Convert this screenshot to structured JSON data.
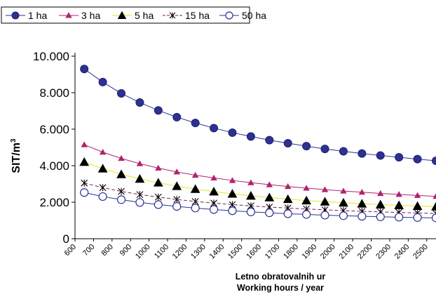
{
  "chart_data": {
    "type": "line",
    "xlabel": "Letno obratovalnih ur",
    "xlabel2": "Working hours / year",
    "ylabel": "SIT/m",
    "ylabel_sup": "3",
    "ylim": [
      0,
      10000
    ],
    "yticks": [
      0,
      2000,
      4000,
      6000,
      8000,
      10000
    ],
    "ytick_labels": [
      "0",
      "2.000",
      "4.000",
      "6.000",
      "8.000",
      "10.000"
    ],
    "xlim": [
      600,
      2550
    ],
    "x_tick_labels": [
      "600",
      "700",
      "800",
      "900",
      "1000",
      "1100",
      "1200",
      "1300",
      "1400",
      "1500",
      "1600",
      "1700",
      "1800",
      "1900",
      "2000",
      "2100",
      "2200",
      "2300",
      "2400",
      "2500"
    ],
    "x": [
      650,
      750,
      850,
      950,
      1050,
      1150,
      1250,
      1350,
      1450,
      1550,
      1650,
      1750,
      1850,
      1950,
      2050,
      2150,
      2250,
      2350,
      2450,
      2550
    ],
    "grid": "none",
    "legend_position": "top",
    "series": [
      {
        "name": "1 ha",
        "color": "#2e3192",
        "marker": "filled-circle",
        "line": "solid",
        "values": [
          9300,
          8580,
          7960,
          7460,
          7030,
          6660,
          6340,
          6060,
          5810,
          5600,
          5400,
          5230,
          5070,
          4920,
          4790,
          4670,
          4560,
          4460,
          4360,
          4270
        ]
      },
      {
        "name": "3 ha",
        "color": "#b2226e",
        "marker": "triangle-filled",
        "line": "solid",
        "values": [
          5150,
          4740,
          4400,
          4110,
          3870,
          3660,
          3480,
          3330,
          3190,
          3070,
          2960,
          2860,
          2770,
          2690,
          2610,
          2550,
          2480,
          2430,
          2370,
          2320
        ]
      },
      {
        "name": "5 ha",
        "color": "#e5e51a",
        "marker": "triangle-black",
        "line": "solid",
        "values": [
          4200,
          3840,
          3530,
          3280,
          3070,
          2880,
          2720,
          2580,
          2460,
          2350,
          2260,
          2170,
          2090,
          2030,
          1970,
          1920,
          1870,
          1830,
          1790,
          1760
        ]
      },
      {
        "name": "15 ha",
        "color": "#7a1f52",
        "marker": "star",
        "line": "dashed",
        "values": [
          3050,
          2800,
          2590,
          2420,
          2280,
          2150,
          2040,
          1950,
          1870,
          1800,
          1730,
          1680,
          1630,
          1580,
          1540,
          1500,
          1470,
          1440,
          1410,
          1380
        ]
      },
      {
        "name": "50 ha",
        "color": "#2e3192",
        "marker": "open-circle",
        "line": "solid",
        "values": [
          2530,
          2310,
          2140,
          1990,
          1870,
          1770,
          1680,
          1600,
          1530,
          1470,
          1420,
          1370,
          1330,
          1290,
          1260,
          1230,
          1200,
          1180,
          1160,
          1140
        ]
      }
    ]
  }
}
